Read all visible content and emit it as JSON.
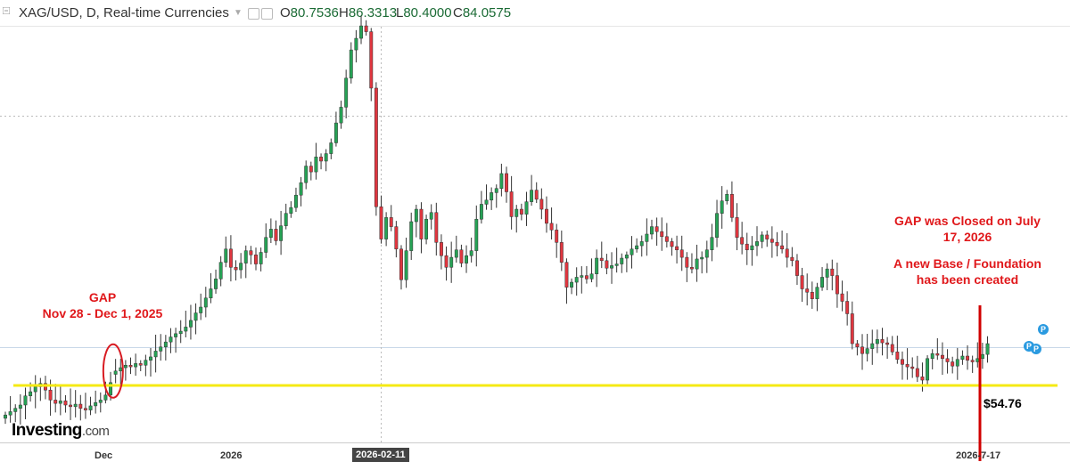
{
  "header": {
    "title": "XAG/USD, D, Real-time Currencies",
    "open_label": "O",
    "open": "80.7536",
    "high_label": "H",
    "high": "86.3313",
    "low_label": "L",
    "low": "80.4000",
    "close_label": "C",
    "close": "84.0575"
  },
  "annotations": {
    "gap_title": "GAP",
    "gap_dates": "Nov 28 - Dec 1, 2025",
    "gap_closed_line1": "GAP was Closed on July",
    "gap_closed_line2": "17, 2026",
    "base_line1": "A new Base / Foundation",
    "base_line2": "has been created",
    "price_label": "$54.76"
  },
  "logo": {
    "brand": "Investing",
    "suffix": ".com"
  },
  "badges": [
    "P",
    "P",
    "P"
  ],
  "colors": {
    "up": "#26a255",
    "down": "#e0363f",
    "support": "#f5ea14",
    "marker": "#d00000",
    "crosshair": "#bbbbbb"
  },
  "chart_data": {
    "type": "candlestick",
    "symbol": "XAG/USD",
    "timeframe": "D",
    "x_ticks": [
      "Dec",
      "2026",
      "2026-02-11",
      "2026-7-17"
    ],
    "y_range": [
      48,
      98
    ],
    "support_level": 54.76,
    "gap": {
      "from": "Nov 28, 2025",
      "to": "Dec 1, 2025"
    },
    "gap_closed": "July 17, 2026",
    "last_ohlc": {
      "open": 80.7536,
      "high": 86.3313,
      "low": 80.4,
      "close": 84.0575
    },
    "closes": [
      51.2,
      51.6,
      52.0,
      52.4,
      53.5,
      54.0,
      54.6,
      55.0,
      54.2,
      53.0,
      52.6,
      52.9,
      52.4,
      52.2,
      52.5,
      52.0,
      51.8,
      52.3,
      52.7,
      53.0,
      53.6,
      55.1,
      56.5,
      56.9,
      57.2,
      57.0,
      57.4,
      57.2,
      57.8,
      58.2,
      58.9,
      59.4,
      60.0,
      60.6,
      61.0,
      61.3,
      61.8,
      62.6,
      63.5,
      64.2,
      65.3,
      66.4,
      67.6,
      69.6,
      71.2,
      69.0,
      68.7,
      69.5,
      71.0,
      70.5,
      69.4,
      70.8,
      72.6,
      73.6,
      72.2,
      74.0,
      75.5,
      76.2,
      77.7,
      79.2,
      81.2,
      80.5,
      82.3,
      81.8,
      82.7,
      84.0,
      86.4,
      88.3,
      91.8,
      95.2,
      96.6,
      98.1,
      97.4,
      90.6,
      76.3,
      72.4,
      75.0,
      73.9,
      71.2,
      67.5,
      71.0,
      74.5,
      76.0,
      72.4,
      74.8,
      75.6,
      72.0,
      70.4,
      69.0,
      70.2,
      71.1,
      69.5,
      70.4,
      71.0,
      74.8,
      76.6,
      77.1,
      78.0,
      78.5,
      80.3,
      78.1,
      75.1,
      76.0,
      75.4,
      76.9,
      78.3,
      77.2,
      76.0,
      74.3,
      73.5,
      72.0,
      69.6,
      66.6,
      67.2,
      67.8,
      68.0,
      67.6,
      68.2,
      70.1,
      69.8,
      68.9,
      69.2,
      69.4,
      70.1,
      70.5,
      71.2,
      71.6,
      72.1,
      73.0,
      73.9,
      73.3,
      72.7,
      72.1,
      71.5,
      71.1,
      70.2,
      69.0,
      68.8,
      70.0,
      70.2,
      71.1,
      72.6,
      75.5,
      77.0,
      77.8,
      75.0,
      72.6,
      71.8,
      71.1,
      71.6,
      72.1,
      72.9,
      72.4,
      72.0,
      71.6,
      71.2,
      70.2,
      69.8,
      68.0,
      66.4,
      66.0,
      65.2,
      66.6,
      67.8,
      68.8,
      68.0,
      65.8,
      64.9,
      63.4,
      59.8,
      59.4,
      58.6,
      59.2,
      59.8,
      60.3,
      59.9,
      59.7,
      58.8,
      57.9,
      57.3,
      57.0,
      56.8,
      55.8,
      55.4,
      58.0,
      58.6,
      58.4,
      58.0,
      57.6,
      57.1,
      57.9,
      58.3,
      57.8,
      57.6,
      58.0,
      58.5,
      59.8
    ],
    "title": "",
    "xlabel": "",
    "ylabel": ""
  }
}
